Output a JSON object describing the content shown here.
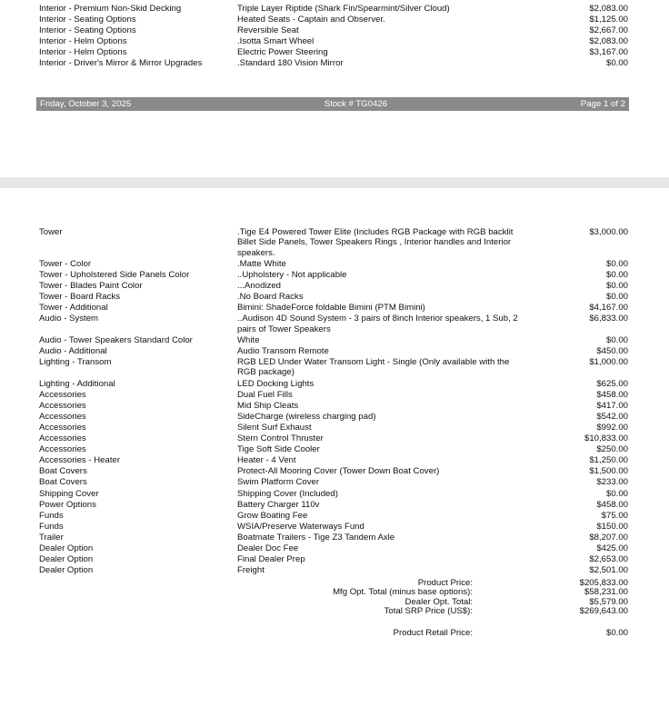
{
  "page1": {
    "rows": [
      [
        "Interior - Premium Non-Skid Decking",
        "Triple Layer Riptide (Shark Fin/Spearmint/Silver Cloud)",
        "$2,083.00"
      ],
      [
        "Interior - Seating Options",
        "Heated Seats - Captain and Observer.",
        "$1,125.00"
      ],
      [
        "Interior - Seating Options",
        "Reversible Seat",
        "$2,667.00"
      ],
      [
        "Interior - Helm Options",
        ".Isotta Smart Wheel",
        "$2,083.00"
      ],
      [
        "Interior - Helm Options",
        "Electric Power Steering",
        "$3,167.00"
      ],
      [
        "Interior - Driver's Mirror & Mirror Upgrades",
        ".Standard 180 Vision Mirror",
        "$0.00"
      ]
    ],
    "footer": {
      "date": "Friday, October 3, 2025",
      "stock": "Stock # TG0426",
      "page": "Page 1 of 2"
    }
  },
  "page2": {
    "rows": [
      [
        "Tower",
        ".Tige E4 Powered Tower Elite (Includes RGB Package with RGB backlit Billet Side Panels, Tower Speakers Rings , Interior handles and Interior speakers.",
        "$3,000.00"
      ],
      [
        "Tower - Color",
        ".Matte White",
        "$0.00"
      ],
      [
        "Tower - Upholstered Side Panels Color",
        "..Upholstery - Not applicable",
        "$0.00"
      ],
      [
        "Tower - Blades Paint Color",
        "...Anodized",
        "$0.00"
      ],
      [
        "Tower - Board Racks",
        ".No Board Racks",
        "$0.00"
      ],
      [
        "Tower - Additional",
        "Bimini: ShadeForce foldable Bimini (PTM Bimini)",
        "$4,167.00"
      ],
      [
        "Audio - System",
        "..Audison 4D Sound System - 3 pairs of 8inch Interior speakers, 1 Sub, 2 pairs of Tower Speakers",
        "$6,833.00"
      ],
      [
        "Audio - Tower Speakers Standard Color",
        "White",
        "$0.00"
      ],
      [
        "Audio - Additional",
        "Audio Transom Remote",
        "$450.00"
      ],
      [
        "Lighting - Transom",
        "RGB LED Under Water Transom Light - Single (Only available with the RGB package)",
        "$1,000.00"
      ],
      [
        "Lighting - Additional",
        "LED Docking Lights",
        "$625.00"
      ],
      [
        "Accessories",
        "Dual Fuel Fills",
        "$458.00"
      ],
      [
        "Accessories",
        "Mid Ship Cleats",
        "$417.00"
      ],
      [
        "Accessories",
        "SideCharge (wireless charging pad)",
        "$542.00"
      ],
      [
        "Accessories",
        "Silent Surf Exhaust",
        "$992.00"
      ],
      [
        "Accessories",
        "Stern Control Thruster",
        "$10,833.00"
      ],
      [
        "Accessories",
        "Tige Soft Side Cooler",
        "$250.00"
      ],
      [
        "Accessories - Heater",
        "Heater - 4 Vent",
        "$1,250.00"
      ],
      [
        "Boat Covers",
        "Protect-All Mooring Cover (Tower Down Boat Cover)",
        "$1,500.00"
      ],
      [
        "Boat Covers",
        "Swim Platform Cover",
        "$233.00"
      ],
      [
        "Shipping Cover",
        "Shipping Cover (Included)",
        "$0.00"
      ],
      [
        "Power Options",
        "Battery Charger 110v",
        "$458.00"
      ],
      [
        "Funds",
        "Grow Boating Fee",
        "$75.00"
      ],
      [
        "Funds",
        "WSIA/Preserve Waterways Fund",
        "$150.00"
      ],
      [
        "Trailer",
        "Boatmate Trailers - Tige Z3 Tandem Axle",
        "$8,207.00"
      ],
      [
        "Dealer Option",
        "Dealer Doc Fee",
        "$425.00"
      ],
      [
        "Dealer Option",
        "Final Dealer Prep",
        "$2,653.00"
      ],
      [
        "Dealer Option",
        "Freight",
        "$2,501.00"
      ]
    ],
    "totals": [
      [
        "Product Price:",
        "$205,833.00"
      ],
      [
        "Mfg Opt. Total (minus base options):",
        "$58,231.00"
      ],
      [
        "Dealer Opt. Total:",
        "$5,579.00"
      ],
      [
        "Total SRP Price (US$):",
        "$269,643.00"
      ]
    ],
    "retail": [
      "Product Retail Price:",
      "$0.00"
    ]
  }
}
